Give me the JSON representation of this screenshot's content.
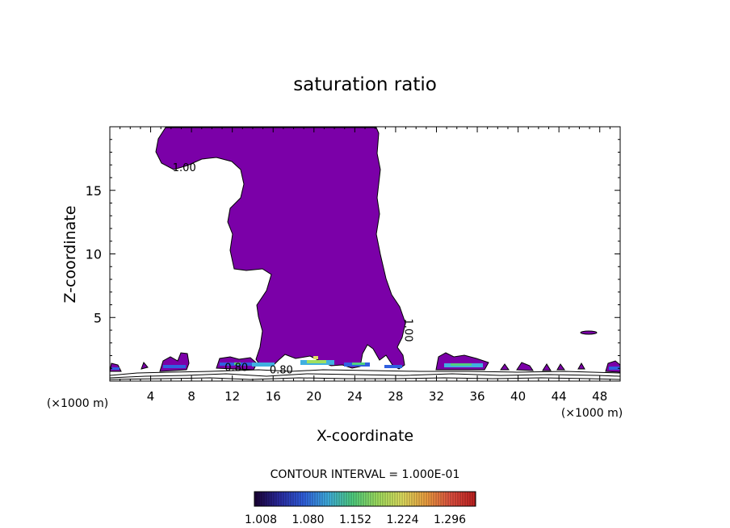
{
  "chart_data": {
    "type": "contour",
    "title": "saturation ratio",
    "xlabel": "X-coordinate",
    "ylabel": "Z-coordinate",
    "x_unit_left": "(×1000 m)",
    "x_unit_right": "(×1000 m)",
    "xlim": [
      0,
      50
    ],
    "ylim": [
      0,
      20
    ],
    "x_ticks": [
      4,
      8,
      12,
      16,
      20,
      24,
      28,
      32,
      36,
      40,
      44,
      48
    ],
    "y_ticks": [
      5,
      10,
      15
    ],
    "contour_labels": [
      {
        "text": "1.00",
        "x": 7.3,
        "z": 16.5
      },
      {
        "text": "1.00",
        "x": 28.9,
        "z": 4.0,
        "rotate": 90
      },
      {
        "text": "0.80",
        "x": 16.8,
        "z": 0.6
      },
      {
        "text": "0.80",
        "x": 12.4,
        "z": 0.8
      }
    ],
    "contour_interval_text": "CONTOUR INTERVAL = 1.000E-01",
    "colorbar": {
      "tick_labels": [
        "1.008",
        "1.080",
        "1.152",
        "1.224",
        "1.296"
      ],
      "min": 1.008,
      "max": 1.296,
      "colors": [
        "#1a0033",
        "#2a2aa0",
        "#3060e0",
        "#40b0e0",
        "#50d080",
        "#a0e060",
        "#e0e060",
        "#f0a040",
        "#e05040",
        "#c02020"
      ]
    },
    "fill_color": "#7b00a8",
    "grid": false
  }
}
